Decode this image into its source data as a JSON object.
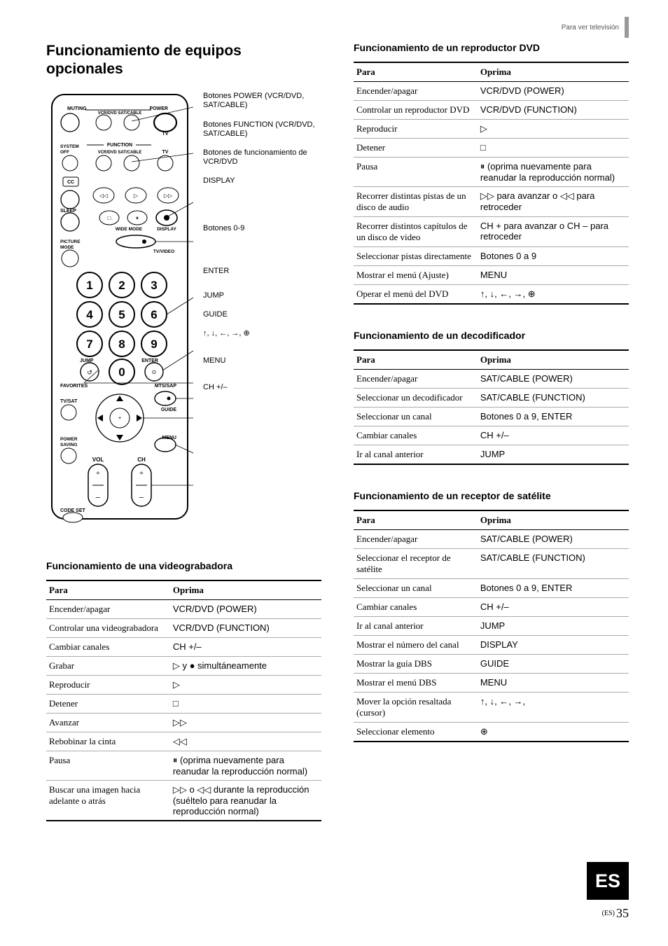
{
  "header_small": "Para ver televisión",
  "section_title": "Funcionamiento de equipos opcionales",
  "remote_callouts": [
    "Botones POWER (VCR/DVD, SAT/CABLE)",
    "Botones FUNCTION (VCR/DVD, SAT/CABLE)",
    "Botones de funcionamiento de VCR/DVD",
    "DISPLAY",
    "Botones 0-9",
    "ENTER",
    "JUMP",
    "GUIDE",
    "↑, ↓, ←, →,  ⊕",
    "MENU",
    "CH +/–"
  ],
  "remote_labels": {
    "muting": "MUTING",
    "power": "POWER",
    "vcrdvd": "VCR/DVD",
    "satcable": "SAT/CABLE",
    "tv": "TV",
    "systemoff": "SYSTEM OFF",
    "function": "FUNCTION",
    "cc": "CC",
    "sleep": "SLEEP",
    "widemode": "WIDE MODE",
    "display": "DISPLAY",
    "picturemode": "PICTURE MODE",
    "tvvideo": "TV/VIDEO",
    "jump": "JUMP",
    "enter": "ENTER",
    "favorites": "FAVORITES",
    "mtssap": "MTS/SAP",
    "tvsat": "TV/SAT",
    "guide": "GUIDE",
    "powersaving": "POWER SAVING",
    "menu": "MENU",
    "vol": "VOL",
    "ch": "CH",
    "codeset": "CODE SET"
  },
  "vcr": {
    "title": "Funcionamiento de una videograbadora",
    "head": [
      "Para",
      "Oprima"
    ],
    "rows": [
      [
        "Encender/apagar",
        "VCR/DVD (POWER)"
      ],
      [
        "Controlar una videograbadora",
        "VCR/DVD (FUNCTION)"
      ],
      [
        "Cambiar canales",
        "CH +/–"
      ],
      [
        "Grabar",
        "▷  y  ●  simultáneamente"
      ],
      [
        "Reproducir",
        "▷"
      ],
      [
        "Detener",
        "□"
      ],
      [
        "Avanzar",
        "▷▷"
      ],
      [
        "Rebobinar la cinta",
        "◁◁"
      ],
      [
        "Pausa",
        "⏸ (oprima nuevamente para reanudar la reproducción normal)"
      ],
      [
        "Buscar una imagen hacia adelante o atrás",
        "▷▷ o ◁◁ durante la reproducción (suéltelo para reanudar la reproducción normal)"
      ]
    ]
  },
  "dvd": {
    "title": "Funcionamiento de un reproductor DVD",
    "head": [
      "Para",
      "Oprima"
    ],
    "rows": [
      [
        "Encender/apagar",
        "VCR/DVD (POWER)"
      ],
      [
        "Controlar un reproductor DVD",
        "VCR/DVD (FUNCTION)"
      ],
      [
        "Reproducir",
        "▷"
      ],
      [
        "Detener",
        "□"
      ],
      [
        "Pausa",
        "⏸ (oprima nuevamente para reanudar la reproducción normal)"
      ],
      [
        "Recorrer distintas pistas de un disco de audio",
        "▷▷ para avanzar o ◁◁ para retroceder"
      ],
      [
        "Recorrer distintos capítulos de un disco de video",
        "CH + para avanzar o CH – para retroceder"
      ],
      [
        "Seleccionar pistas directamente",
        "Botones 0 a 9"
      ],
      [
        "Mostrar el menú (Ajuste)",
        "MENU"
      ],
      [
        "Operar el menú del DVD",
        "↑, ↓, ←, →,  ⊕"
      ]
    ]
  },
  "decoder": {
    "title": "Funcionamiento de un decodificador",
    "head": [
      "Para",
      "Oprima"
    ],
    "rows": [
      [
        "Encender/apagar",
        "SAT/CABLE (POWER)"
      ],
      [
        "Seleccionar un decodificador",
        "SAT/CABLE (FUNCTION)"
      ],
      [
        "Seleccionar un canal",
        "Botones 0 a 9, ENTER"
      ],
      [
        "Cambiar canales",
        "CH +/–"
      ],
      [
        "Ir al canal anterior",
        "JUMP"
      ]
    ]
  },
  "sat": {
    "title": "Funcionamiento de un receptor de satélite",
    "head": [
      "Para",
      "Oprima"
    ],
    "rows": [
      [
        "Encender/apagar",
        "SAT/CABLE (POWER)"
      ],
      [
        "Seleccionar el receptor de satélite",
        "SAT/CABLE (FUNCTION)"
      ],
      [
        "Seleccionar un canal",
        "Botones 0 a 9, ENTER"
      ],
      [
        "Cambiar canales",
        "CH +/–"
      ],
      [
        "Ir al canal anterior",
        "JUMP"
      ],
      [
        "Mostrar el número del canal",
        "DISPLAY"
      ],
      [
        "Mostrar la guía DBS",
        "GUIDE"
      ],
      [
        "Mostrar el menú DBS",
        "MENU"
      ],
      [
        "Mover la opción resaltada (cursor)",
        "↑, ↓, ←, →,"
      ],
      [
        "Seleccionar elemento",
        "⊕"
      ]
    ]
  },
  "side_tab": "ES",
  "page_prefix": "(ES)",
  "page_number": "35"
}
